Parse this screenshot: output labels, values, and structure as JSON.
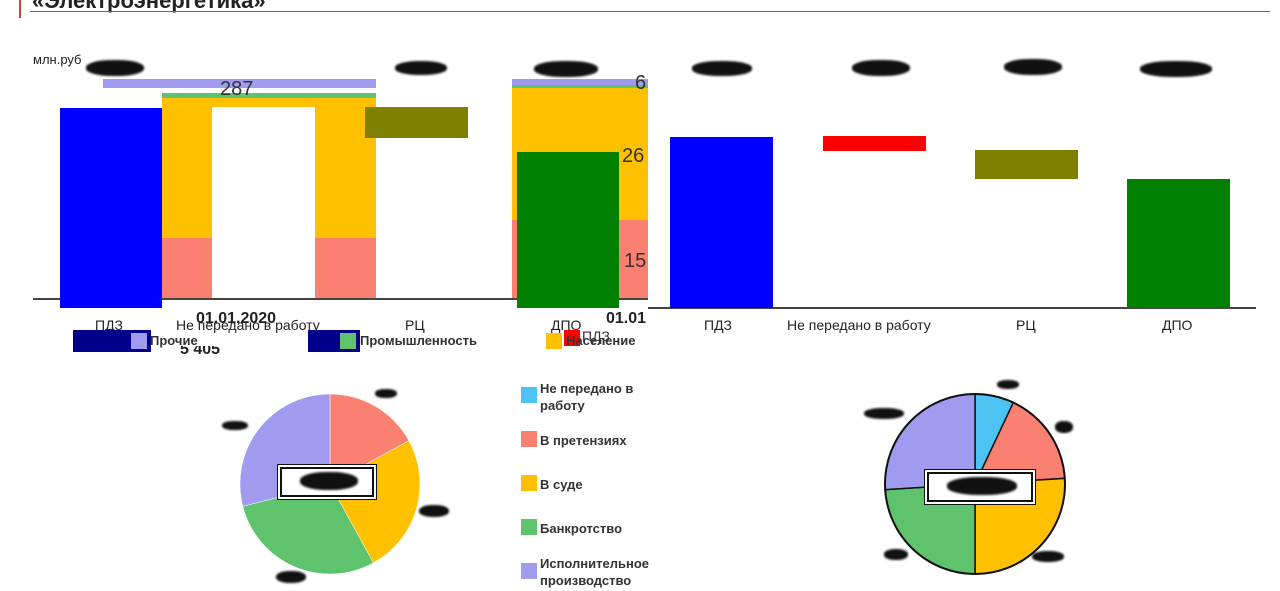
{
  "header": {
    "title": "«Электроэнергетика»",
    "unit": "млн.руб"
  },
  "colors": {
    "pdz": "#0000ff",
    "not_transferred_red": "#ff0000",
    "rc": "#808000",
    "dpo": "#008000",
    "claims": "#fa8072",
    "court": "#ffc000",
    "bankrupt": "#5fc26c",
    "exec": "#a19bf0",
    "not_transferred_blue": "#4dc3f4",
    "other": "#a19bf0",
    "industry": "#5fc26c",
    "population": "#ffc000",
    "legend_frame": "#00008b"
  },
  "left_chart": {
    "values": {
      "top_label": "287",
      "date_label": "01.01.2020"
    },
    "categories": [
      "ПДЗ",
      "Не передано в работу",
      "РЦ",
      "ДПО"
    ]
  },
  "mid_chart": {
    "values": {
      "v1": "6",
      "v2": "26",
      "v3": "15",
      "date_label": "01.01"
    },
    "legend_extra": "ПДЗ"
  },
  "right_chart": {
    "categories": [
      "ПДЗ",
      "Не передано в работу",
      "РЦ",
      "ДПО"
    ]
  },
  "bottom_legend": {
    "items": [
      "Прочие",
      "Промышленность",
      "Население"
    ],
    "partial_text": "5 405"
  },
  "pie_legend": {
    "items": [
      "Не передано в работу",
      "В претензиях",
      "В суде",
      "Банкротство",
      "Исполнительное производство"
    ]
  },
  "pie_left": {
    "slices": [
      {
        "name": "В претензиях",
        "pct": 17
      },
      {
        "name": "В суде",
        "pct": 25
      },
      {
        "name": "Банкротство",
        "pct": 29
      },
      {
        "name": "Исполнительное производство",
        "pct": 29
      }
    ]
  },
  "pie_right": {
    "slices": [
      {
        "name": "Не передано в работу",
        "pct": 7
      },
      {
        "name": "В претензиях",
        "pct": 17
      },
      {
        "name": "В суде",
        "pct": 26
      },
      {
        "name": "Банкротство",
        "pct": 24
      },
      {
        "name": "Исполнительное производство",
        "pct": 26
      }
    ]
  }
}
